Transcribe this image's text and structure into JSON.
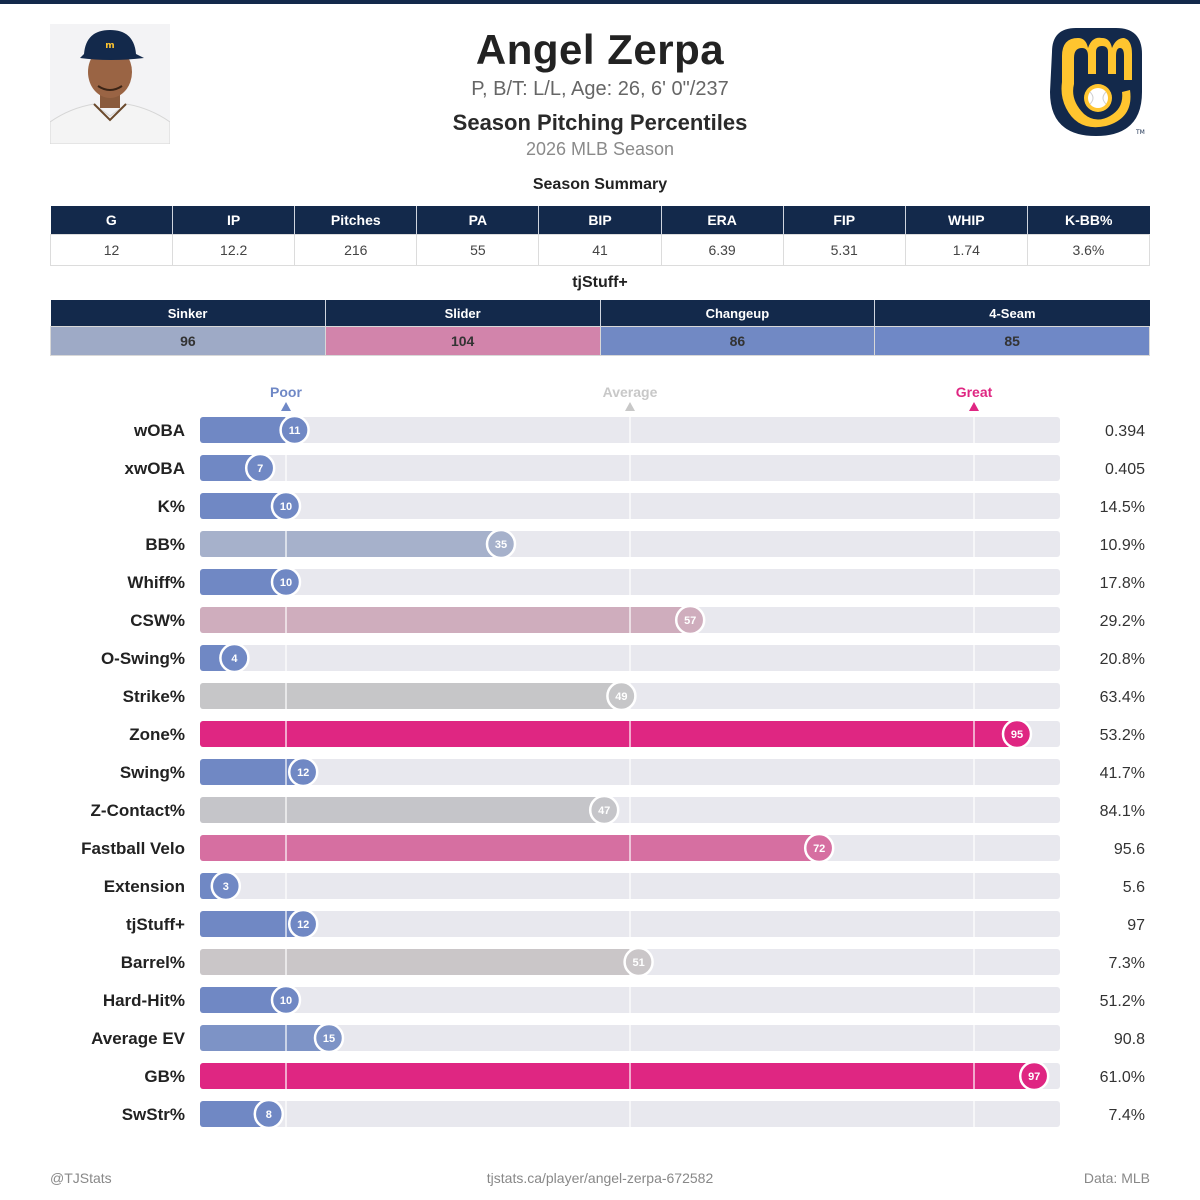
{
  "header": {
    "name": "Angel Zerpa",
    "bio": "P, B/T: L/L, Age: 26, 6' 0\"/237",
    "subtitle": "Season Pitching Percentiles",
    "season": "2026 MLB Season"
  },
  "summary": {
    "title": "Season Summary",
    "columns": [
      "G",
      "IP",
      "Pitches",
      "PA",
      "BIP",
      "ERA",
      "FIP",
      "WHIP",
      "K-BB%"
    ],
    "values": [
      "12",
      "12.2",
      "216",
      "55",
      "41",
      "6.39",
      "5.31",
      "1.74",
      "3.6%"
    ]
  },
  "tjstuff": {
    "title": "tjStuff+",
    "pitches": [
      {
        "name": "Sinker",
        "value": "96",
        "color": "#9eaac6"
      },
      {
        "name": "Slider",
        "value": "104",
        "color": "#d284ab"
      },
      {
        "name": "Changeup",
        "value": "86",
        "color": "#7189c4"
      },
      {
        "name": "4-Seam",
        "value": "85",
        "color": "#6f88c6"
      }
    ]
  },
  "chart_data": {
    "type": "bar",
    "orientation": "horizontal",
    "xlim": [
      0,
      100
    ],
    "markers": [
      {
        "label": "Poor",
        "value": 10,
        "color": "#6f88c6"
      },
      {
        "label": "Average",
        "value": 50,
        "color": "#c8c8c8"
      },
      {
        "label": "Great",
        "value": 90,
        "color": "#df2682"
      }
    ],
    "categories": [
      "wOBA",
      "xwOBA",
      "K%",
      "BB%",
      "Whiff%",
      "CSW%",
      "O-Swing%",
      "Strike%",
      "Zone%",
      "Swing%",
      "Z-Contact%",
      "Fastball Velo",
      "Extension",
      "tjStuff+",
      "Barrel%",
      "Hard-Hit%",
      "Average EV",
      "GB%",
      "SwStr%"
    ],
    "percentiles": [
      11,
      7,
      10,
      35,
      10,
      57,
      4,
      49,
      95,
      12,
      47,
      72,
      3,
      12,
      51,
      10,
      15,
      97,
      8
    ],
    "stat_values": [
      "0.394",
      "0.405",
      "14.5%",
      "10.9%",
      "17.8%",
      "29.2%",
      "20.8%",
      "63.4%",
      "53.2%",
      "41.7%",
      "84.1%",
      "95.6",
      "5.6",
      "97",
      "7.3%",
      "51.2%",
      "90.8",
      "61.0%",
      "7.4%"
    ],
    "colors": [
      "#7088c4",
      "#7088c4",
      "#7088c4",
      "#a6b1cb",
      "#7088c4",
      "#cfadbd",
      "#7088c4",
      "#c6c6c8",
      "#df2682",
      "#7088c4",
      "#c5c5c9",
      "#d66fa1",
      "#7088c4",
      "#7088c4",
      "#cac6c8",
      "#7088c4",
      "#7d93c6",
      "#df2682",
      "#7088c4"
    ]
  },
  "footer": {
    "handle": "@TJStats",
    "url": "tjstats.ca/player/angel-zerpa-672582",
    "source": "Data: MLB"
  }
}
